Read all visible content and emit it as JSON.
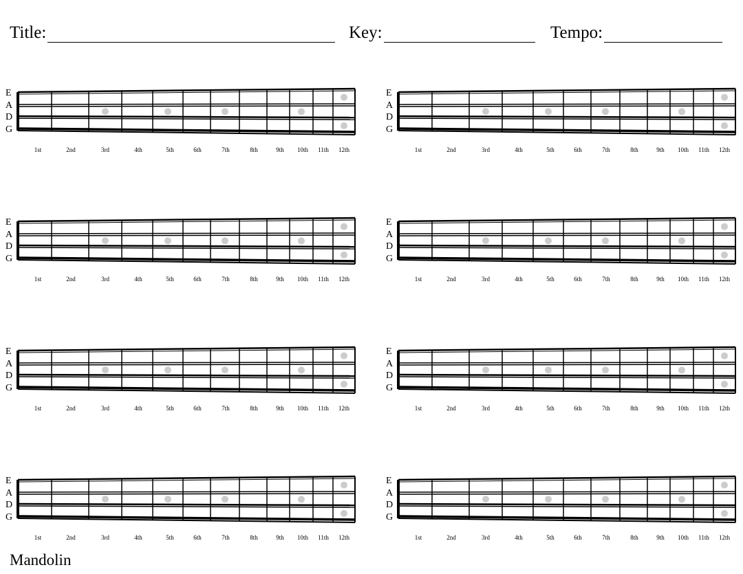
{
  "header": {
    "title_label": "Title:",
    "key_label": "Key:",
    "tempo_label": "Tempo:"
  },
  "strings": [
    "E",
    "A",
    "D",
    "G"
  ],
  "frets": [
    "1st",
    "2nd",
    "3rd",
    "4th",
    "5th",
    "6th",
    "7th",
    "8th",
    "9th",
    "10th",
    "11th",
    "12th"
  ],
  "inlay_frets_single": [
    "3rd",
    "5th",
    "7th",
    "10th"
  ],
  "inlay_frets_double": [
    "12th"
  ],
  "inlay_color": "#cccccc",
  "fretboard_count": 8,
  "footer": {
    "instrument": "Mandolin"
  }
}
